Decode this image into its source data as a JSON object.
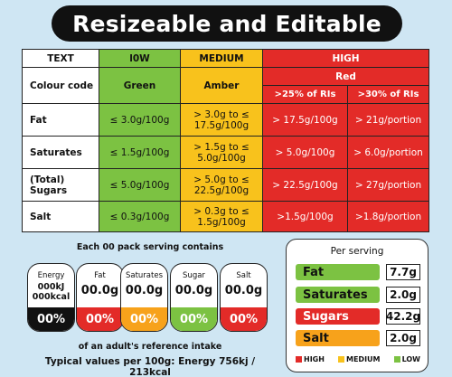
{
  "title": "Resizeable and Editable",
  "table": {
    "header": {
      "text": "TEXT",
      "low": "l0W",
      "medium": "MEDIUM",
      "high": "HIGH"
    },
    "colour_row": {
      "label": "Colour code",
      "low": "Green",
      "medium": "Amber",
      "high": "Red",
      "high_sub1": ">25% of  RIs",
      "high_sub2": ">30% of RIs"
    },
    "rows": [
      {
        "label": "Fat",
        "low": "≤ 3.0g/100g",
        "medium": "> 3.0g to ≤ 17.5g/100g",
        "high1": "> 17.5g/100g",
        "high2": "> 21g/portion"
      },
      {
        "label": "Saturates",
        "low": "≤ 1.5g/100g",
        "medium": "> 1.5g to ≤ 5.0g/100g",
        "high1": "> 5.0g/100g",
        "high2": "> 6.0g/portion"
      },
      {
        "label": "(Total) Sugars",
        "low": "≤ 5.0g/100g",
        "medium": "> 5.0g to ≤ 22.5g/100g",
        "high1": "> 22.5g/100g",
        "high2": "> 27g/portion"
      },
      {
        "label": "Salt",
        "low": "≤ 0.3g/100g",
        "medium": "> 0.3g to ≤ 1.5g/100g",
        "high1": ">1.5g/100g",
        "high2": ">1.8g/portion"
      }
    ]
  },
  "pack": {
    "serving_text": "Each  00 pack  serving contains",
    "tiles": [
      {
        "label": "Energy",
        "value_line1": "000kJ",
        "value_line2": "000kcal",
        "percent": "00%",
        "color": "#111111"
      },
      {
        "label": "Fat",
        "value": "00.0g",
        "percent": "00%",
        "color": "#e32b28"
      },
      {
        "label": "Saturates",
        "value": "00.0g",
        "percent": "00%",
        "color": "#f7a21b"
      },
      {
        "label": "Sugar",
        "value": "00.0g",
        "percent": "00%",
        "color": "#7cc242"
      },
      {
        "label": "Salt",
        "value": "00.0g",
        "percent": "00%",
        "color": "#e32b28"
      }
    ],
    "reference_text": "of an adult's reference intake",
    "typical_text": "Typical values per 100g: Energy 756kj / 213kcal"
  },
  "per_serving": {
    "title": "Per serving",
    "items": [
      {
        "label": "Fat",
        "value": "7.7g",
        "color": "#7cc242"
      },
      {
        "label": "Saturates",
        "value": "2.0g",
        "color": "#7cc242"
      },
      {
        "label": "Sugars",
        "value": "42.2g",
        "color": "#e32b28"
      },
      {
        "label": "Salt",
        "value": "2.0g",
        "color": "#f7a21b"
      }
    ],
    "legend": [
      {
        "label": "HIGH",
        "color": "#e32b28"
      },
      {
        "label": "MEDIUM",
        "color": "#f8c21c"
      },
      {
        "label": "LOW",
        "color": "#7cc242"
      }
    ]
  }
}
